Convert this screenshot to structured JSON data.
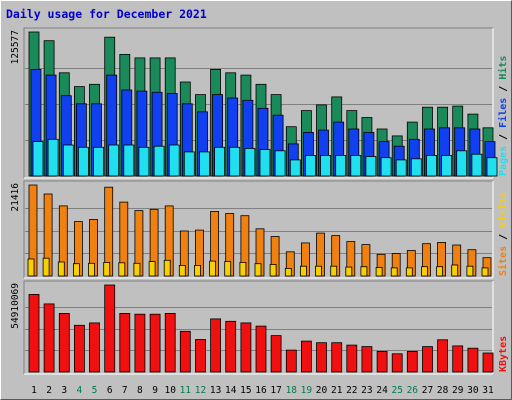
{
  "title": "Daily usage for December 2021",
  "colors": {
    "hits": "#1a8a5a",
    "files": "#1040f0",
    "pages": "#20e0f0",
    "visits": "#f8d000",
    "sites": "#f08010",
    "kbytes": "#f01010",
    "day_normal": "#000000",
    "day_weekend": "#007a4a",
    "panel_bg": "#c0c0c0"
  },
  "chart_data": [
    {
      "type": "bar",
      "panel": "hits-files-pages",
      "axis_max_label": "125577",
      "ylim": [
        0,
        125577
      ],
      "legend": [
        "Pages",
        "Files",
        "Hits"
      ],
      "categories": [
        "1",
        "2",
        "3",
        "4",
        "5",
        "6",
        "7",
        "8",
        "9",
        "10",
        "11",
        "12",
        "13",
        "14",
        "15",
        "16",
        "17",
        "18",
        "19",
        "20",
        "21",
        "22",
        "23",
        "24",
        "25",
        "26",
        "27",
        "28",
        "29",
        "30",
        "31"
      ],
      "series": [
        {
          "name": "Hits",
          "values": [
            125577,
            118000,
            90000,
            78000,
            80000,
            121000,
            106000,
            103000,
            103000,
            103000,
            82000,
            71000,
            93000,
            90000,
            88000,
            80000,
            71000,
            43000,
            57000,
            62000,
            69000,
            57000,
            51000,
            41000,
            35000,
            47000,
            60000,
            60000,
            61000,
            54000,
            42000
          ]
        },
        {
          "name": "Files",
          "values": [
            93000,
            88000,
            70000,
            63000,
            63000,
            88000,
            75000,
            74000,
            73000,
            72000,
            63000,
            56000,
            71000,
            68000,
            66000,
            59000,
            53000,
            28000,
            38000,
            40000,
            47000,
            41000,
            38000,
            30000,
            26000,
            32000,
            41000,
            42000,
            42000,
            41000,
            30000
          ]
        },
        {
          "name": "Pages",
          "values": [
            30000,
            32000,
            27000,
            25000,
            25000,
            27000,
            27000,
            25000,
            26000,
            27000,
            21000,
            21000,
            25000,
            25000,
            24000,
            23000,
            22000,
            14000,
            18000,
            18000,
            18000,
            18000,
            17000,
            16000,
            14000,
            15000,
            18000,
            18000,
            22000,
            19000,
            16000
          ]
        }
      ]
    },
    {
      "type": "bar",
      "panel": "sites-visits",
      "axis_max_label": "21416",
      "ylim": [
        0,
        21416
      ],
      "legend": [
        "Sites",
        "Visits"
      ],
      "categories": [
        "1",
        "2",
        "3",
        "4",
        "5",
        "6",
        "7",
        "8",
        "9",
        "10",
        "11",
        "12",
        "13",
        "14",
        "15",
        "16",
        "17",
        "18",
        "19",
        "20",
        "21",
        "22",
        "23",
        "24",
        "25",
        "26",
        "27",
        "28",
        "29",
        "30",
        "31"
      ],
      "series": [
        {
          "name": "Sites",
          "values": [
            21416,
            19300,
            16500,
            12800,
            13300,
            20900,
            17400,
            15400,
            15700,
            16500,
            10600,
            10800,
            15200,
            14700,
            14200,
            11100,
            9300,
            5700,
            7800,
            10100,
            9500,
            8100,
            7400,
            5100,
            5300,
            6000,
            7600,
            7900,
            7300,
            6200,
            4300
          ]
        },
        {
          "name": "Visits",
          "values": [
            4000,
            4200,
            3300,
            2900,
            3000,
            3200,
            3100,
            3000,
            3400,
            3700,
            2500,
            2500,
            3500,
            3400,
            3200,
            2900,
            2700,
            1800,
            2300,
            2300,
            2300,
            2100,
            2200,
            2000,
            1900,
            1900,
            2200,
            2200,
            2600,
            2300,
            1900
          ]
        }
      ]
    },
    {
      "type": "bar",
      "panel": "kbytes",
      "axis_max_label": "54910069",
      "ylim": [
        0,
        54910069
      ],
      "legend": [
        "KBytes"
      ],
      "categories": [
        "1",
        "2",
        "3",
        "4",
        "5",
        "6",
        "7",
        "8",
        "9",
        "10",
        "11",
        "12",
        "13",
        "14",
        "15",
        "16",
        "17",
        "18",
        "19",
        "20",
        "21",
        "22",
        "23",
        "24",
        "25",
        "26",
        "27",
        "28",
        "29",
        "30",
        "31"
      ],
      "series": [
        {
          "name": "KBytes",
          "values": [
            49000000,
            43000000,
            37000000,
            29500000,
            31000000,
            54910069,
            37000000,
            36500000,
            36500000,
            37000000,
            25700000,
            20500000,
            33500000,
            32000000,
            31000000,
            29000000,
            23000000,
            13800000,
            19500000,
            18500000,
            18500000,
            17000000,
            16000000,
            13000000,
            11500000,
            13000000,
            16000000,
            20300000,
            16500000,
            15000000,
            12000000
          ]
        }
      ]
    }
  ],
  "days": [
    {
      "label": "1",
      "weekend": false
    },
    {
      "label": "2",
      "weekend": false
    },
    {
      "label": "3",
      "weekend": false
    },
    {
      "label": "4",
      "weekend": true
    },
    {
      "label": "5",
      "weekend": true
    },
    {
      "label": "6",
      "weekend": false
    },
    {
      "label": "7",
      "weekend": false
    },
    {
      "label": "8",
      "weekend": false
    },
    {
      "label": "9",
      "weekend": false
    },
    {
      "label": "10",
      "weekend": false
    },
    {
      "label": "11",
      "weekend": true
    },
    {
      "label": "12",
      "weekend": true
    },
    {
      "label": "13",
      "weekend": false
    },
    {
      "label": "14",
      "weekend": false
    },
    {
      "label": "15",
      "weekend": false
    },
    {
      "label": "16",
      "weekend": false
    },
    {
      "label": "17",
      "weekend": false
    },
    {
      "label": "18",
      "weekend": true
    },
    {
      "label": "19",
      "weekend": true
    },
    {
      "label": "20",
      "weekend": false
    },
    {
      "label": "21",
      "weekend": false
    },
    {
      "label": "22",
      "weekend": false
    },
    {
      "label": "23",
      "weekend": false
    },
    {
      "label": "24",
      "weekend": false
    },
    {
      "label": "25",
      "weekend": true
    },
    {
      "label": "26",
      "weekend": true
    },
    {
      "label": "27",
      "weekend": false
    },
    {
      "label": "28",
      "weekend": false
    },
    {
      "label": "29",
      "weekend": false
    },
    {
      "label": "30",
      "weekend": false
    },
    {
      "label": "31",
      "weekend": false
    }
  ]
}
